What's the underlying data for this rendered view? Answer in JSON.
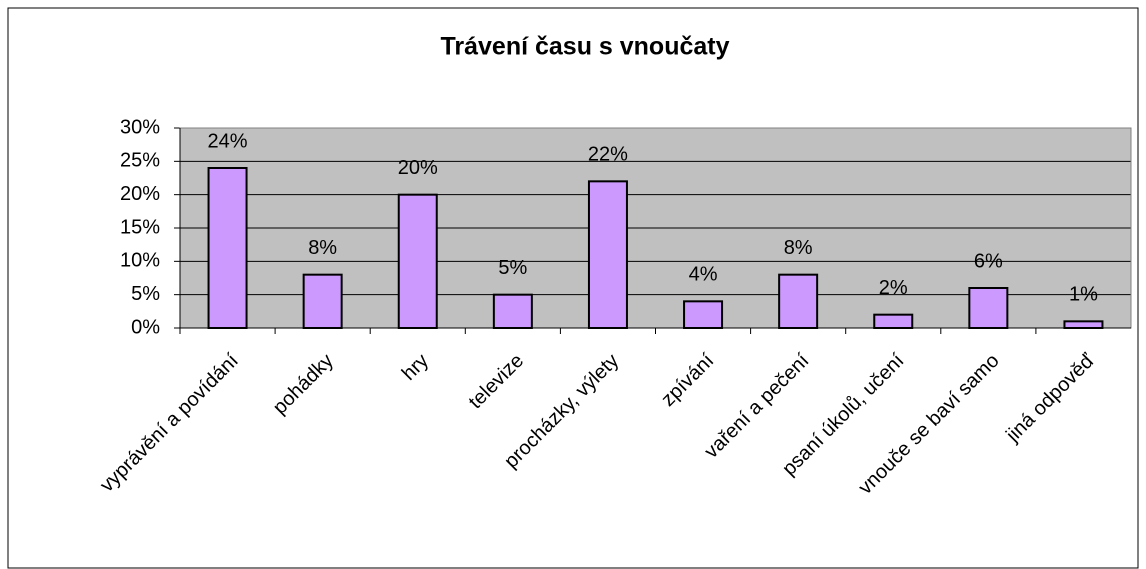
{
  "chart_data": {
    "type": "bar",
    "title": "Trávení času s vnoučaty",
    "categories": [
      "vyprávění a povídání",
      "pohádky",
      "hry",
      "televize",
      "procházky, výlety",
      "zpívání",
      "vaření a pečení",
      "psaní úkolů, učení",
      "vnouče se baví samo",
      "jiná odpověď"
    ],
    "values": [
      24,
      8,
      20,
      5,
      22,
      4,
      8,
      2,
      6,
      1
    ],
    "value_labels": [
      "24%",
      "8%",
      "20%",
      "5%",
      "22%",
      "4%",
      "8%",
      "2%",
      "6%",
      "1%"
    ],
    "color": "#cc99ff",
    "ylim": [
      0,
      30
    ],
    "yticks": [
      {
        "value": 0,
        "label": "0%"
      },
      {
        "value": 5,
        "label": "5%"
      },
      {
        "value": 10,
        "label": "10%"
      },
      {
        "value": 15,
        "label": "15%"
      },
      {
        "value": 20,
        "label": "20%"
      },
      {
        "value": 25,
        "label": "25%"
      },
      {
        "value": 30,
        "label": "30%"
      }
    ],
    "grid": true
  }
}
